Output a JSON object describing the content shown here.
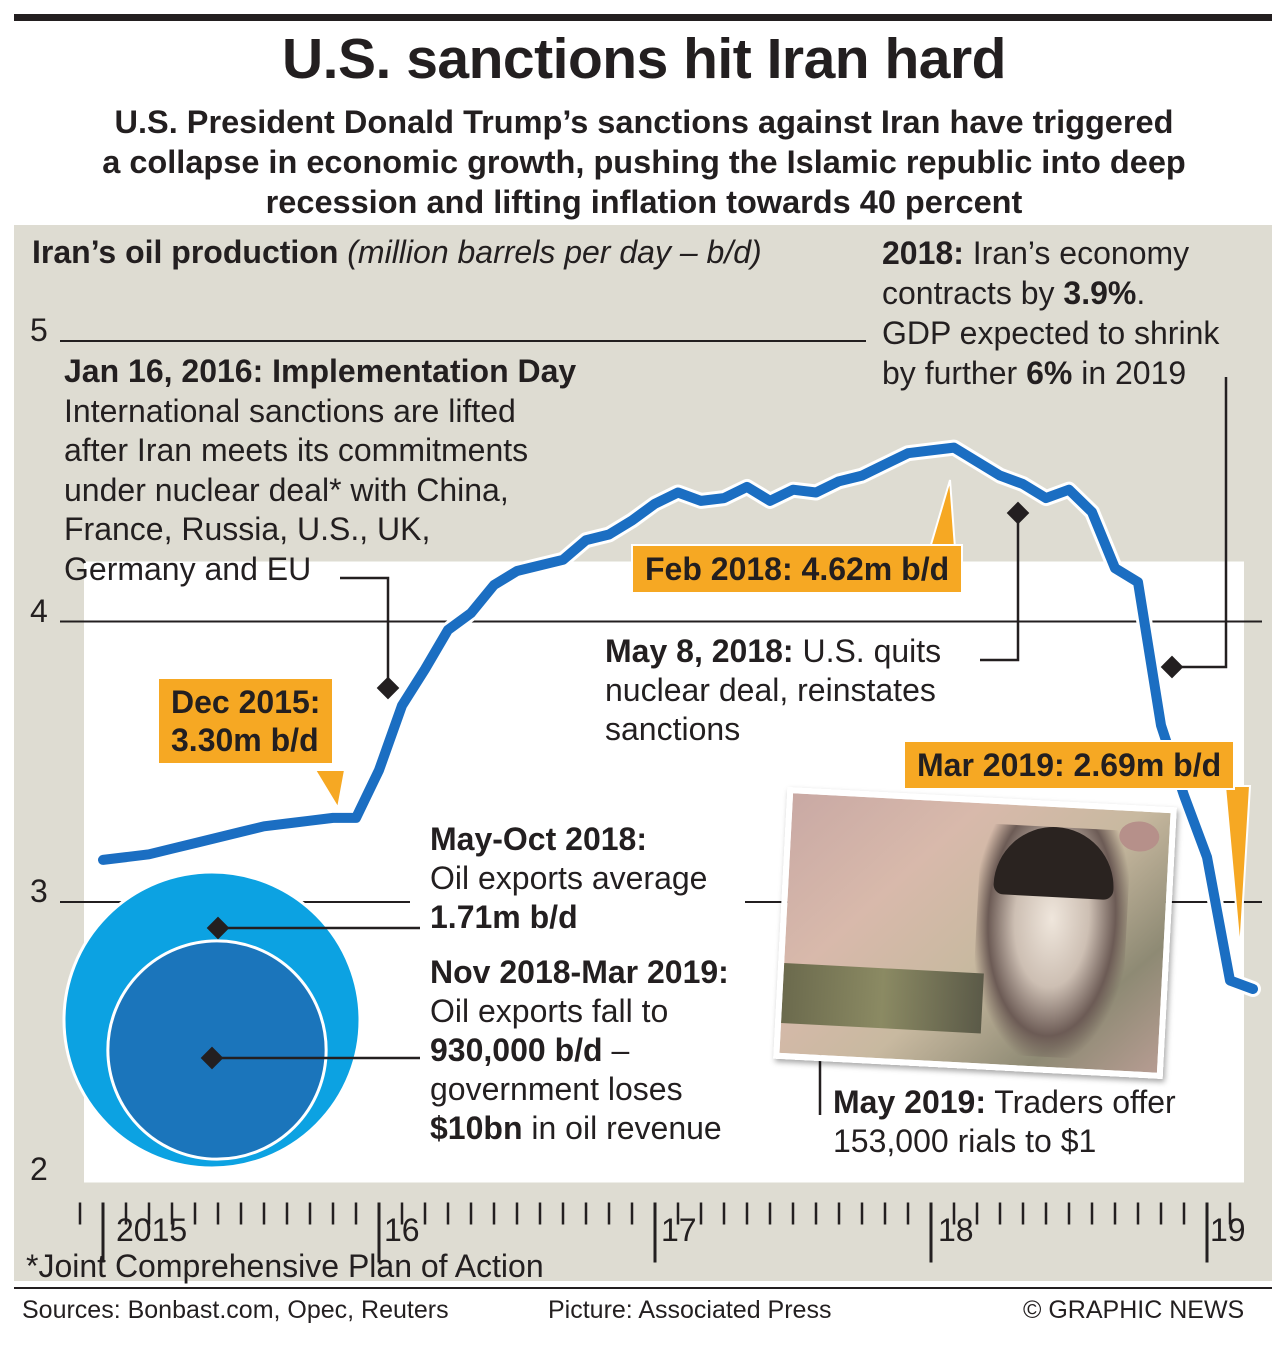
{
  "header": {
    "title": "U.S. sanctions hit Iran hard",
    "subtitle_lines": [
      "U.S. President Donald Trump’s sanctions against Iran have triggered",
      "a collapse in economic growth, pushing the Islamic republic into deep",
      "recession and lifting inflation towards 40 percent"
    ]
  },
  "chart_data": {
    "type": "line",
    "title": "Iran’s oil production",
    "unit_label": "(million barrels per day – b/d)",
    "ylim": [
      2,
      5
    ],
    "y_ticks": [
      "5",
      "4",
      "3",
      "2"
    ],
    "x_ticks": [
      "2015",
      "16",
      "17",
      "18",
      "19"
    ],
    "series": [
      {
        "values": [
          [
            "2015-01",
            3.15
          ],
          [
            "2015-02",
            3.16
          ],
          [
            "2015-03",
            3.17
          ],
          [
            "2015-04",
            3.19
          ],
          [
            "2015-05",
            3.21
          ],
          [
            "2015-06",
            3.23
          ],
          [
            "2015-07",
            3.25
          ],
          [
            "2015-08",
            3.27
          ],
          [
            "2015-09",
            3.28
          ],
          [
            "2015-10",
            3.29
          ],
          [
            "2015-11",
            3.3
          ],
          [
            "2015-12",
            3.3
          ],
          [
            "2016-01",
            3.47
          ],
          [
            "2016-02",
            3.7
          ],
          [
            "2016-03",
            3.83
          ],
          [
            "2016-04",
            3.97
          ],
          [
            "2016-05",
            4.03
          ],
          [
            "2016-06",
            4.13
          ],
          [
            "2016-07",
            4.18
          ],
          [
            "2016-08",
            4.2
          ],
          [
            "2016-09",
            4.22
          ],
          [
            "2016-10",
            4.29
          ],
          [
            "2016-11",
            4.31
          ],
          [
            "2016-12",
            4.36
          ],
          [
            "2017-01",
            4.42
          ],
          [
            "2017-02",
            4.46
          ],
          [
            "2017-03",
            4.43
          ],
          [
            "2017-04",
            4.44
          ],
          [
            "2017-05",
            4.48
          ],
          [
            "2017-06",
            4.43
          ],
          [
            "2017-07",
            4.47
          ],
          [
            "2017-08",
            4.46
          ],
          [
            "2017-09",
            4.5
          ],
          [
            "2017-10",
            4.52
          ],
          [
            "2017-11",
            4.56
          ],
          [
            "2017-12",
            4.6
          ],
          [
            "2018-01",
            4.61
          ],
          [
            "2018-02",
            4.62
          ],
          [
            "2018-03",
            4.57
          ],
          [
            "2018-04",
            4.52
          ],
          [
            "2018-05",
            4.49
          ],
          [
            "2018-06",
            4.44
          ],
          [
            "2018-07",
            4.47
          ],
          [
            "2018-08",
            4.39
          ],
          [
            "2018-09",
            4.19
          ],
          [
            "2018-10",
            4.14
          ],
          [
            "2018-11",
            3.63
          ],
          [
            "2018-12",
            3.38
          ],
          [
            "2019-01",
            3.16
          ],
          [
            "2019-02",
            2.72
          ],
          [
            "2019-03",
            2.69
          ]
        ]
      }
    ],
    "annotations": {
      "jan2016": {
        "heading": "Jan 16, 2016: Implementation Day",
        "lines": [
          "International sanctions are lifted",
          "after Iran meets its commitments",
          "under nuclear deal* with China,",
          "France, Russia, U.S., UK,",
          "Germany and EU"
        ]
      },
      "gdp": {
        "l1_bold": "2018:",
        "l1_rest": " Iran’s economy",
        "l2_pre": "contracts by ",
        "l2_bold": "3.9%",
        "l2_post": ".",
        "l3": "GDP expected to shrink",
        "l4_pre": "by further ",
        "l4_bold": "6%",
        "l4_post": " in 2019"
      },
      "feb2018": "Feb 2018: 4.62m b/d",
      "dec2015_line1": "Dec 2015:",
      "dec2015_line2": "3.30m b/d",
      "may2018": {
        "l1_bold": "May 8, 2018:",
        "l1_rest": " U.S. quits",
        "l2": "nuclear deal, reinstates",
        "l3": "sanctions"
      },
      "mar2019": "Mar 2019: 2.69m b/d",
      "exports1": {
        "heading": "May-Oct 2018:",
        "l2": "Oil exports average",
        "l3_bold": "1.71m b/d"
      },
      "exports2": {
        "heading": "Nov 2018-Mar 2019:",
        "l2": "Oil exports fall to",
        "l3_bold": "930,000 b/d",
        "l3_rest": " –",
        "l4": "government loses",
        "l5_bold": "$10bn",
        "l5_rest": " in oil revenue"
      },
      "may2019": {
        "l1_bold": "May 2019:",
        "l1_rest": " Traders offer",
        "l2": "153,000 rials to $1"
      }
    },
    "bubbles": [
      {
        "label": "May-Oct 2018",
        "value": 1.71,
        "color": "#0ca2e2"
      },
      {
        "label": "Nov 2018-Mar 2019",
        "value": 0.93,
        "color": "#1b75bb"
      }
    ],
    "line_color": "#1b6ec2",
    "callout_color": "#f6a823",
    "grid": true
  },
  "footnote": "*Joint Comprehensive Plan of Action",
  "footer": {
    "sources": "Sources:  Bonbast.com, Opec, Reuters",
    "picture": "Picture: Associated Press",
    "credit": "© GRAPHIC NEWS"
  }
}
